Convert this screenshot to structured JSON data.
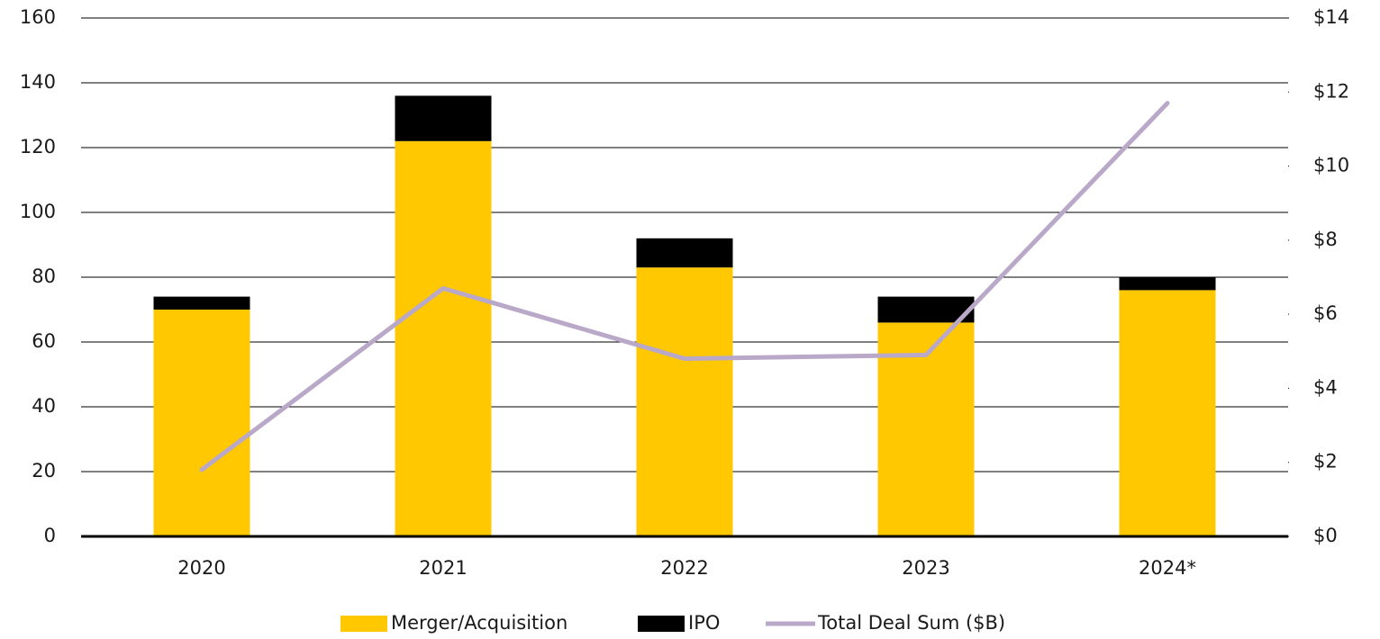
{
  "chart_data": {
    "type": "bar",
    "categories": [
      "2020",
      "2021",
      "2022",
      "2023",
      "2024*"
    ],
    "stacked": true,
    "series": [
      {
        "name": "Merger/Acquisition",
        "color": "#FFC800",
        "values": [
          70,
          122,
          83,
          66,
          76
        ]
      },
      {
        "name": "IPO",
        "color": "#000000",
        "values": [
          4,
          14,
          9,
          8,
          4
        ]
      },
      {
        "name": "Total Deal Sum ($B)",
        "color": "#B9A8C8",
        "type": "line",
        "axis": "y2",
        "values": [
          1.8,
          6.7,
          4.8,
          4.9,
          11.7
        ]
      }
    ],
    "ylim": [
      0,
      160
    ],
    "yticks": [
      0,
      20,
      40,
      60,
      80,
      100,
      120,
      140,
      160
    ],
    "y2lim": [
      0,
      14
    ],
    "y2ticks": [
      {
        "value": 0,
        "label": "$0"
      },
      {
        "value": 2,
        "label": "$2"
      },
      {
        "value": 4,
        "label": "$4"
      },
      {
        "value": 6,
        "label": "$6"
      },
      {
        "value": 8,
        "label": "$8"
      },
      {
        "value": 10,
        "label": "$10"
      },
      {
        "value": 12,
        "label": "$12"
      },
      {
        "value": 14,
        "label": "$14"
      }
    ],
    "grid": true,
    "legend": "bottom"
  }
}
